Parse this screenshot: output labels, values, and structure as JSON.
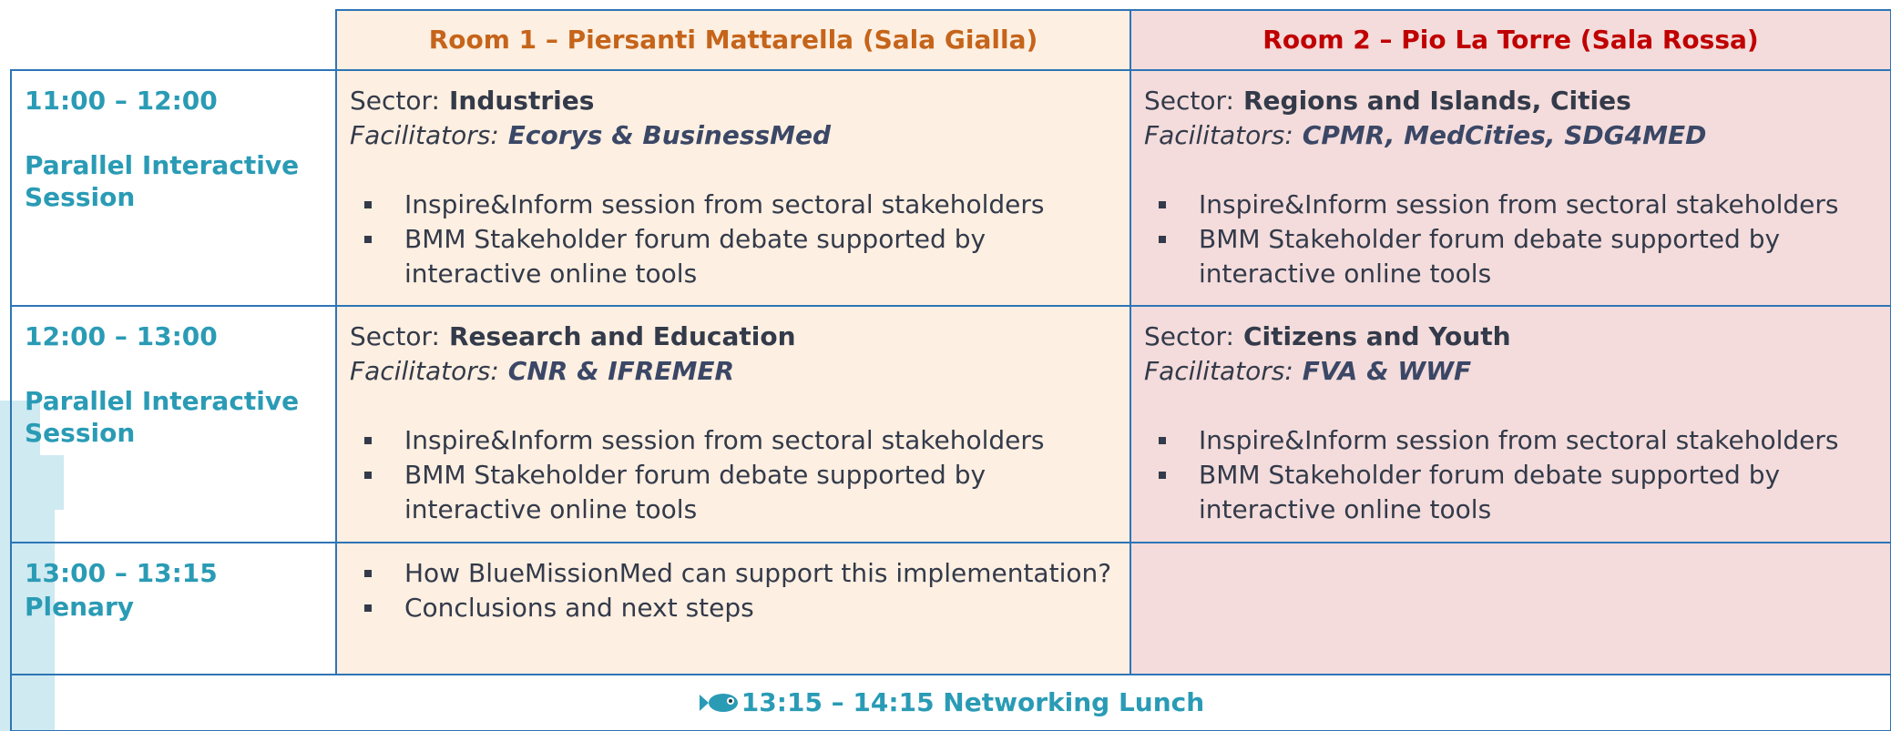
{
  "table": {
    "headers": [
      "Room 1 – Piersanti Mattarella (Sala Gialla)",
      "Room 2 – Pio La Torre (Sala Rossa)"
    ],
    "rows": [
      {
        "time": "11:00 – 12:00",
        "session": "Parallel Interactive Session",
        "rooms": [
          {
            "sector_label": "Sector:",
            "sector": "Industries",
            "facilitators_label": "Facilitators:",
            "facilitators": "Ecorys & BusinessMed",
            "items": [
              "Inspire&Inform session from sectoral stakeholders",
              "BMM Stakeholder forum debate supported by interactive online tools"
            ]
          },
          {
            "sector_label": "Sector:",
            "sector": "Regions and Islands, Cities",
            "facilitators_label": "Facilitators:",
            "facilitators": "CPMR, MedCities, SDG4MED",
            "items": [
              "Inspire&Inform session from sectoral stakeholders",
              "BMM Stakeholder forum debate supported by interactive online tools"
            ]
          }
        ]
      },
      {
        "time": "12:00 – 13:00",
        "session": "Parallel Interactive Session",
        "rooms": [
          {
            "sector_label": "Sector:",
            "sector": "Research and Education",
            "facilitators_label": "Facilitators:",
            "facilitators": "CNR & IFREMER",
            "items": [
              "Inspire&Inform session from sectoral stakeholders",
              "BMM Stakeholder forum debate supported by interactive online tools"
            ]
          },
          {
            "sector_label": "Sector:",
            "sector": "Citizens and Youth",
            "facilitators_label": "Facilitators:",
            "facilitators": "FVA & WWF",
            "items": [
              "Inspire&Inform session from sectoral stakeholders",
              "BMM Stakeholder forum debate supported by interactive online tools"
            ]
          }
        ]
      },
      {
        "time": "13:00 – 13:15",
        "session": "Plenary",
        "rooms": [
          {
            "items": [
              "How BlueMissionMed can support this implementation?",
              "Conclusions and next steps"
            ]
          },
          {}
        ]
      }
    ],
    "footer": "13:15 – 14:15 Networking Lunch"
  }
}
